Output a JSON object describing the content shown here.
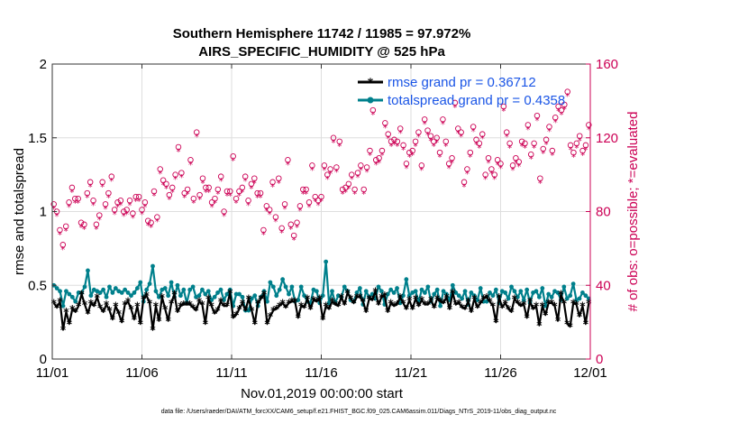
{
  "colors": {
    "rmse": "#000000",
    "spread": "#00808c",
    "obs": "#cc0055",
    "legend_text": "#1a55e6",
    "grid": "#dedede",
    "axis": "#333333"
  },
  "chart_data": {
    "type": "line",
    "title_line1": "Southern Hemisphere 11742 / 11985 = 97.972%",
    "title_line2": "AIRS_SPECIFIC_HUMIDITY @ 525 hPa",
    "xlabel": "Nov.01,2019 00:00:00 start",
    "ylabel_left": "rmse and totalspread",
    "ylabel_right": "# of obs: o=possible; *=evaluated",
    "footer": "data file: /Users/raeder/DAI/ATM_forcXX/CAM6_setup/f.e21.FHIST_BGC.f09_025.CAM6assim.011/Diags_NTrS_2019-11/obs_diag_output.nc",
    "xlim": [
      0,
      30
    ],
    "ylim_left": [
      0,
      2
    ],
    "ylim_right": [
      0,
      160
    ],
    "xticks": [
      0,
      5,
      10,
      15,
      20,
      25,
      30
    ],
    "xtick_labels": [
      "11/01",
      "11/06",
      "11/11",
      "11/16",
      "11/21",
      "11/26",
      "12/01"
    ],
    "yticks_left": [
      0,
      0.5,
      1,
      1.5,
      2
    ],
    "ytick_labels_left": [
      "0",
      "0.5",
      "1",
      "1.5",
      "2"
    ],
    "yticks_right": [
      0,
      40,
      80,
      120,
      160
    ],
    "ytick_labels_right": [
      "0",
      "40",
      "80",
      "120",
      "160"
    ],
    "series": [
      {
        "name": "rmse grand pr = 0.36712",
        "axis": "left",
        "marker": "asterisk",
        "values": [
          0.38,
          0.35,
          0.39,
          0.2,
          0.32,
          0.24,
          0.34,
          0.32,
          0.36,
          0.44,
          0.37,
          0.31,
          0.38,
          0.36,
          0.42,
          0.35,
          0.32,
          0.37,
          0.33,
          0.27,
          0.36,
          0.31,
          0.25,
          0.37,
          0.39,
          0.34,
          0.27,
          0.36,
          0.24,
          0.41,
          0.43,
          0.38,
          0.2,
          0.36,
          0.26,
          0.42,
          0.34,
          0.26,
          0.38,
          0.44,
          0.32,
          0.36,
          0.37,
          0.37,
          0.37,
          0.35,
          0.33,
          0.39,
          0.37,
          0.24,
          0.41,
          0.36,
          0.31,
          0.33,
          0.39,
          0.36,
          0.36,
          0.45,
          0.28,
          0.3,
          0.34,
          0.38,
          0.33,
          0.41,
          0.33,
          0.24,
          0.38,
          0.41,
          0.44,
          0.24,
          0.29,
          0.33,
          0.34,
          0.36,
          0.38,
          0.35,
          0.38,
          0.39,
          0.39,
          0.28,
          0.36,
          0.35,
          0.41,
          0.34,
          0.4,
          0.39,
          0.41,
          0.27,
          0.36,
          0.34,
          0.39,
          0.37,
          0.36,
          0.42,
          0.37,
          0.45,
          0.41,
          0.38,
          0.42,
          0.42,
          0.39,
          0.32,
          0.41,
          0.4,
          0.46,
          0.37,
          0.42,
          0.43,
          0.32,
          0.38,
          0.36,
          0.37,
          0.42,
          0.38,
          0.34,
          0.4,
          0.34,
          0.41,
          0.36,
          0.4,
          0.37,
          0.37,
          0.4,
          0.35,
          0.41,
          0.39,
          0.38,
          0.42,
          0.34,
          0.45,
          0.37,
          0.38,
          0.35,
          0.34,
          0.39,
          0.32,
          0.41,
          0.35,
          0.38,
          0.41,
          0.42,
          0.39,
          0.36,
          0.25,
          0.42,
          0.35,
          0.38,
          0.34,
          0.32,
          0.41,
          0.38,
          0.36,
          0.37,
          0.28,
          0.39,
          0.34,
          0.36,
          0.23,
          0.36,
          0.3,
          0.38,
          0.38,
          0.36,
          0.26,
          0.44,
          0.38,
          0.24,
          0.22,
          0.38,
          0.37,
          0.29,
          0.36,
          0.24,
          0.38
        ]
      },
      {
        "name": "totalspread grand pr = 0.4358",
        "axis": "left",
        "marker": "dot",
        "values": [
          0.5,
          0.48,
          0.46,
          0.36,
          0.46,
          0.44,
          0.42,
          0.39,
          0.45,
          0.45,
          0.49,
          0.6,
          0.43,
          0.47,
          0.46,
          0.45,
          0.47,
          0.42,
          0.49,
          0.45,
          0.48,
          0.46,
          0.45,
          0.47,
          0.45,
          0.43,
          0.45,
          0.48,
          0.52,
          0.39,
          0.47,
          0.51,
          0.63,
          0.46,
          0.42,
          0.47,
          0.48,
          0.43,
          0.52,
          0.42,
          0.5,
          0.43,
          0.47,
          0.38,
          0.47,
          0.49,
          0.42,
          0.43,
          0.47,
          0.44,
          0.46,
          0.4,
          0.42,
          0.45,
          0.47,
          0.4,
          0.44,
          0.47,
          0.36,
          0.44,
          0.44,
          0.42,
          0.33,
          0.33,
          0.41,
          0.43,
          0.36,
          0.42,
          0.46,
          0.39,
          0.52,
          0.49,
          0.43,
          0.47,
          0.54,
          0.49,
          0.44,
          0.49,
          0.39,
          0.4,
          0.49,
          0.43,
          0.39,
          0.38,
          0.47,
          0.46,
          0.38,
          0.43,
          0.66,
          0.38,
          0.46,
          0.38,
          0.43,
          0.42,
          0.49,
          0.46,
          0.4,
          0.39,
          0.45,
          0.48,
          0.37,
          0.46,
          0.42,
          0.44,
          0.41,
          0.49,
          0.46,
          0.37,
          0.44,
          0.47,
          0.45,
          0.48,
          0.38,
          0.43,
          0.54,
          0.43,
          0.45,
          0.46,
          0.39,
          0.47,
          0.45,
          0.49,
          0.39,
          0.44,
          0.47,
          0.36,
          0.46,
          0.44,
          0.4,
          0.5,
          0.45,
          0.43,
          0.41,
          0.46,
          0.37,
          0.45,
          0.43,
          0.4,
          0.48,
          0.39,
          0.39,
          0.45,
          0.43,
          0.47,
          0.38,
          0.46,
          0.45,
          0.41,
          0.49,
          0.46,
          0.42,
          0.46,
          0.4,
          0.47,
          0.38,
          0.45,
          0.46,
          0.42,
          0.48,
          0.36,
          0.44,
          0.42,
          0.46,
          0.45,
          0.4,
          0.49,
          0.41,
          0.43,
          0.51,
          0.4,
          0.41,
          0.45,
          0.43,
          0.41
        ]
      },
      {
        "name": "possible",
        "axis": "right",
        "marker": "circle",
        "values": [
          84,
          80,
          70,
          62,
          72,
          85,
          93,
          87,
          87,
          74,
          73,
          90,
          96,
          86,
          73,
          78,
          96,
          84,
          90,
          99,
          81,
          85,
          86,
          80,
          81,
          86,
          79,
          88,
          88,
          81,
          85,
          75,
          74,
          91,
          77,
          103,
          97,
          95,
          89,
          93,
          100,
          115,
          101,
          90,
          92,
          108,
          87,
          123,
          89,
          98,
          93,
          93,
          85,
          87,
          92,
          99,
          80,
          91,
          91,
          110,
          87,
          91,
          93,
          99,
          86,
          95,
          98,
          90,
          90,
          70,
          83,
          81,
          96,
          77,
          98,
          71,
          84,
          108,
          73,
          67,
          74,
          83,
          92,
          92,
          85,
          105,
          88,
          86,
          88,
          105,
          100,
          103,
          120,
          104,
          118,
          92,
          93,
          95,
          100,
          92,
          101,
          105,
          92,
          104,
          113,
          135,
          108,
          109,
          113,
          128,
          122,
          118,
          119,
          118,
          125,
          116,
          106,
          112,
          113,
          118,
          123,
          105,
          130,
          124,
          121,
          118,
          120,
          112,
          130,
          118,
          106,
          109,
          139,
          125,
          123,
          96,
          103,
          112,
          126,
          119,
          117,
          122,
          100,
          109,
          103,
          100,
          108,
          106,
          137,
          123,
          117,
          105,
          109,
          107,
          118,
          117,
          127,
          111,
          117,
          132,
          98,
          114,
          119,
          126,
          113,
          131,
          137,
          135,
          138,
          145,
          116,
          112,
          117,
          121,
          113,
          116,
          127
        ]
      },
      {
        "name": "evaluated",
        "axis": "right",
        "marker": "asterisk",
        "values": [
          83,
          79,
          69,
          61,
          71,
          84,
          92,
          86,
          86,
          73,
          72,
          89,
          95,
          85,
          72,
          77,
          95,
          83,
          89,
          98,
          80,
          84,
          85,
          79,
          80,
          85,
          78,
          87,
          87,
          80,
          84,
          74,
          73,
          90,
          76,
          102,
          96,
          94,
          88,
          92,
          99,
          114,
          100,
          89,
          91,
          107,
          86,
          122,
          88,
          97,
          92,
          92,
          84,
          86,
          91,
          98,
          79,
          90,
          90,
          109,
          86,
          90,
          92,
          98,
          85,
          94,
          97,
          89,
          89,
          69,
          82,
          80,
          95,
          76,
          97,
          70,
          83,
          107,
          72,
          66,
          73,
          82,
          91,
          91,
          84,
          104,
          87,
          85,
          87,
          104,
          99,
          102,
          119,
          103,
          117,
          91,
          92,
          94,
          99,
          91,
          100,
          104,
          91,
          103,
          112,
          134,
          107,
          108,
          112,
          127,
          121,
          117,
          118,
          117,
          124,
          115,
          105,
          111,
          112,
          117,
          122,
          104,
          129,
          123,
          120,
          117,
          119,
          111,
          129,
          117,
          105,
          108,
          138,
          124,
          122,
          95,
          102,
          111,
          125,
          118,
          116,
          121,
          99,
          108,
          102,
          99,
          107,
          105,
          136,
          122,
          116,
          104,
          108,
          106,
          117,
          116,
          126,
          110,
          116,
          131,
          97,
          113,
          118,
          125,
          112,
          130,
          136,
          134,
          137,
          144,
          115,
          111,
          116,
          120,
          112,
          115,
          126
        ]
      }
    ]
  }
}
